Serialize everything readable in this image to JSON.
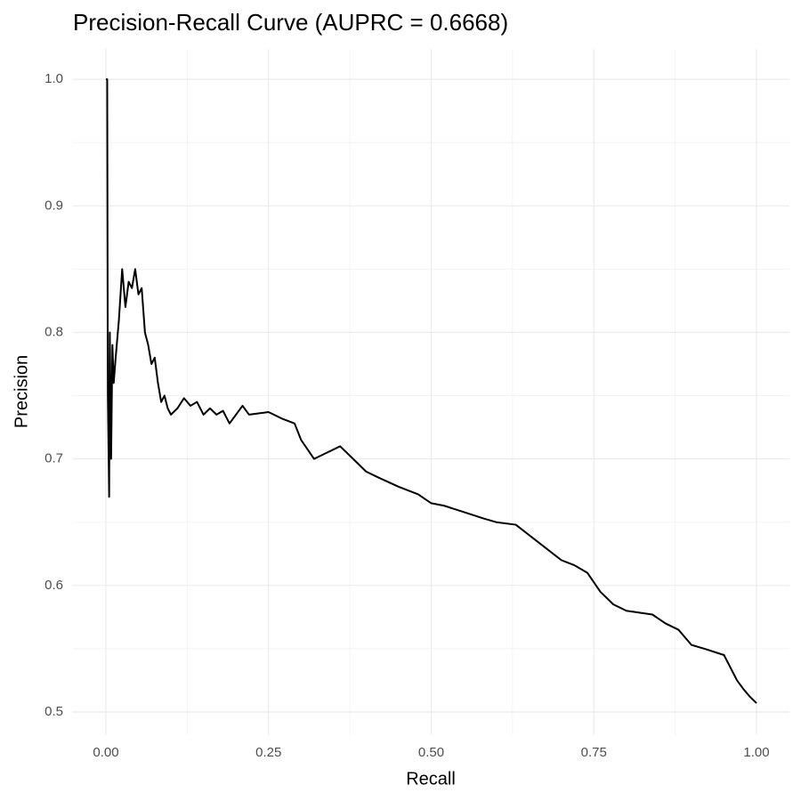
{
  "chart_data": {
    "type": "line",
    "title": "Precision-Recall Curve (AUPRC = 0.6668)",
    "x_label": "Recall",
    "y_label": "Precision",
    "color": "#000000",
    "grid": true,
    "xlim": [
      -0.0506,
      1.0506
    ],
    "ylim": [
      0.4817,
      1.024
    ],
    "xticks": [
      {
        "value": 0,
        "label": "0.00"
      },
      {
        "value": 0.25,
        "label": "0.25"
      },
      {
        "value": 0.5,
        "label": "0.50"
      },
      {
        "value": 0.75,
        "label": "0.75"
      },
      {
        "value": 1,
        "label": "1.00"
      }
    ],
    "yticks": [
      0.5,
      0.6,
      0.7,
      0.8,
      0.9,
      {
        "value": 1,
        "label": "1.0"
      }
    ],
    "x_minor_ticks": [
      0.125,
      0.375,
      0.625,
      0.875
    ],
    "y_minor_ticks": [
      0.55,
      0.65,
      0.75,
      0.85,
      0.95
    ],
    "x": [
      0,
      0.002,
      0.003,
      0.005,
      0.006,
      0.008,
      0.01,
      0.012,
      0.015,
      0.02,
      0.025,
      0.03,
      0.035,
      0.04,
      0.045,
      0.05,
      0.055,
      0.06,
      0.065,
      0.07,
      0.075,
      0.08,
      0.085,
      0.09,
      0.095,
      0.1,
      0.11,
      0.12,
      0.13,
      0.14,
      0.15,
      0.16,
      0.17,
      0.18,
      0.19,
      0.2,
      0.21,
      0.22,
      0.25,
      0.27,
      0.29,
      0.3,
      0.32,
      0.34,
      0.36,
      0.38,
      0.4,
      0.42,
      0.45,
      0.48,
      0.5,
      0.52,
      0.55,
      0.58,
      0.6,
      0.63,
      0.65,
      0.67,
      0.7,
      0.72,
      0.74,
      0.76,
      0.78,
      0.8,
      0.84,
      0.86,
      0.88,
      0.9,
      0.92,
      0.95,
      0.96,
      0.97,
      0.98,
      0.99,
      1
    ],
    "values": [
      1,
      1,
      0.75,
      0.67,
      0.8,
      0.7,
      0.79,
      0.76,
      0.78,
      0.81,
      0.85,
      0.82,
      0.84,
      0.835,
      0.85,
      0.83,
      0.835,
      0.8,
      0.79,
      0.775,
      0.78,
      0.76,
      0.745,
      0.75,
      0.74,
      0.735,
      0.74,
      0.748,
      0.742,
      0.745,
      0.735,
      0.74,
      0.735,
      0.738,
      0.728,
      0.735,
      0.742,
      0.735,
      0.737,
      0.732,
      0.728,
      0.715,
      0.7,
      0.705,
      0.71,
      0.7,
      0.69,
      0.685,
      0.678,
      0.672,
      0.665,
      0.663,
      0.658,
      0.653,
      0.65,
      0.648,
      0.64,
      0.632,
      0.62,
      0.616,
      0.61,
      0.595,
      0.585,
      0.58,
      0.577,
      0.57,
      0.565,
      0.553,
      0.55,
      0.545,
      0.535,
      0.525,
      0.518,
      0.512,
      0.507
    ]
  }
}
